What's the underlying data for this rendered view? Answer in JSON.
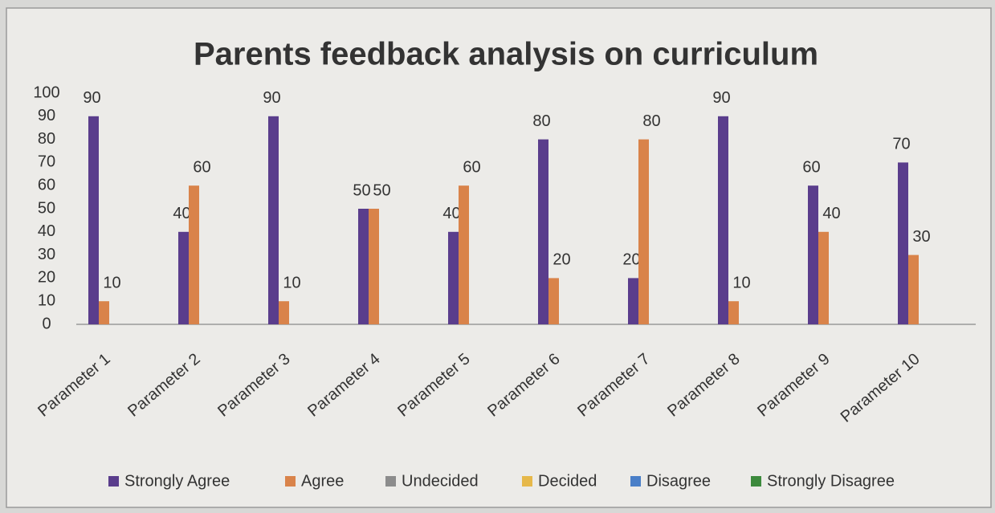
{
  "chart_data": {
    "type": "bar",
    "title": "Parents feedback analysis on curriculum",
    "categories": [
      "Parameter 1",
      "Parameter 2",
      "Parameter 3",
      "Parameter 4",
      "Parameter 5",
      "Parameter 6",
      "Parameter 7",
      "Parameter 8",
      "Parameter 9",
      "Parameter 10"
    ],
    "series": [
      {
        "name": "Strongly Agree",
        "color": "#5a3d8c",
        "values": [
          90,
          40,
          90,
          50,
          40,
          80,
          20,
          90,
          60,
          70
        ]
      },
      {
        "name": "Agree",
        "color": "#d9834a",
        "values": [
          10,
          60,
          10,
          50,
          60,
          20,
          80,
          10,
          40,
          30
        ]
      },
      {
        "name": "Undecided",
        "color": "#8c8c8c",
        "values": [
          null,
          null,
          null,
          null,
          null,
          null,
          null,
          null,
          null,
          null
        ]
      },
      {
        "name": "Decided",
        "color": "#e6b84a",
        "values": [
          null,
          null,
          null,
          null,
          null,
          null,
          null,
          null,
          null,
          null
        ]
      },
      {
        "name": "Disagree",
        "color": "#4a7fc8",
        "values": [
          null,
          null,
          null,
          null,
          null,
          null,
          null,
          null,
          null,
          null
        ]
      },
      {
        "name": "Strongly Disagree",
        "color": "#3d8a3d",
        "values": [
          null,
          null,
          null,
          null,
          null,
          null,
          null,
          null,
          null,
          null
        ]
      }
    ],
    "ylim": [
      0,
      100
    ],
    "yticks": [
      0,
      10,
      20,
      30,
      40,
      50,
      60,
      70,
      80,
      90,
      100
    ],
    "grid": false,
    "legend": "bottom"
  }
}
